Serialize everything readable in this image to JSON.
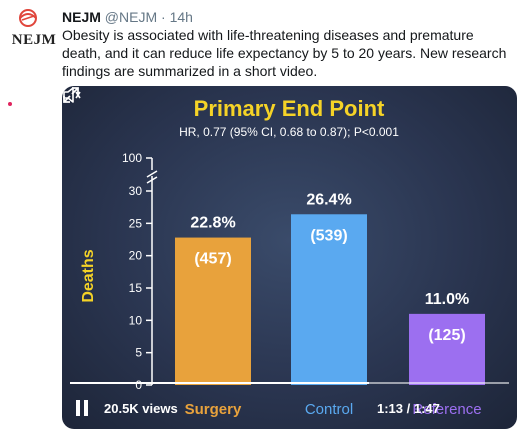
{
  "tweet": {
    "avatar_text": "NEJM",
    "name": "NEJM",
    "handle": "@NEJM",
    "separator": "·",
    "time": "14h",
    "text": "Obesity is associated with life-threatening diseases and premature death, and it can reduce life expectancy by 5 to 20 years. New research findings are summarized in a short video."
  },
  "video": {
    "views": "20.5K views",
    "time": "1:13 / 1:47",
    "progress": 0.68,
    "icons": {
      "play_pause": "pause-icon",
      "volume": "volume-icon",
      "fullscreen": "fullscreen-icon"
    }
  },
  "chart_data": {
    "type": "bar",
    "title": "Primary End Point",
    "subtitle": "HR, 0.77 (95% CI, 0.68 to 0.87); P<0.001",
    "ylabel": "Deaths",
    "xlabel": "",
    "ylim": [
      0,
      30
    ],
    "y_break_top_label": "100",
    "yticks": [
      0,
      5,
      10,
      15,
      20,
      25,
      30
    ],
    "categories": [
      "Surgery",
      "Control",
      "Reference"
    ],
    "values": [
      22.8,
      26.4,
      11.0
    ],
    "value_labels": [
      "22.8%",
      "26.4%",
      "11.0%"
    ],
    "count_labels": [
      "(457)",
      "(539)",
      "(125)"
    ],
    "colors": [
      "#e8a23c",
      "#5aa9f0",
      "#9c6ff0"
    ],
    "title_color": "#f5d327",
    "ylabel_color": "#f5d327"
  }
}
